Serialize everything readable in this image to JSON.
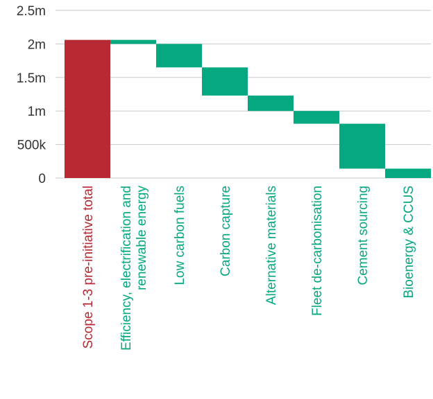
{
  "chart_data": {
    "type": "waterfall",
    "title": "",
    "xlabel": "",
    "ylabel": "",
    "ylim": [
      0,
      2500000
    ],
    "y_ticks": [
      {
        "value": 0,
        "label": "0"
      },
      {
        "value": 500000,
        "label": "500k"
      },
      {
        "value": 1000000,
        "label": "1m"
      },
      {
        "value": 1500000,
        "label": "1.5m"
      },
      {
        "value": 2000000,
        "label": "2m"
      },
      {
        "value": 2500000,
        "label": "2.5m"
      }
    ],
    "grid": true,
    "colors": {
      "total": "#b72a33",
      "reduction": "#06a880",
      "grid": "#c8c8c8",
      "tick_text": "#333333"
    },
    "bars": [
      {
        "category": [
          "Scope 1-3 pre-initiative total"
        ],
        "start": 0,
        "end": 2060000,
        "kind": "total"
      },
      {
        "category": [
          "Efficiency, electrification and",
          "renewable energy"
        ],
        "start": 2000000,
        "end": 2060000,
        "kind": "reduction"
      },
      {
        "category": [
          "Low carbon fuels"
        ],
        "start": 1650000,
        "end": 2000000,
        "kind": "reduction"
      },
      {
        "category": [
          "Carbon capture"
        ],
        "start": 1230000,
        "end": 1650000,
        "kind": "reduction"
      },
      {
        "category": [
          "Alternative materials"
        ],
        "start": 1000000,
        "end": 1230000,
        "kind": "reduction"
      },
      {
        "category": [
          "Fleet de-carbonisation"
        ],
        "start": 810000,
        "end": 1000000,
        "kind": "reduction"
      },
      {
        "category": [
          "Cement sourcing"
        ],
        "start": 140000,
        "end": 810000,
        "kind": "reduction"
      },
      {
        "category": [
          "Bioenergy & CCUS"
        ],
        "start": 0,
        "end": 140000,
        "kind": "reduction"
      }
    ]
  }
}
